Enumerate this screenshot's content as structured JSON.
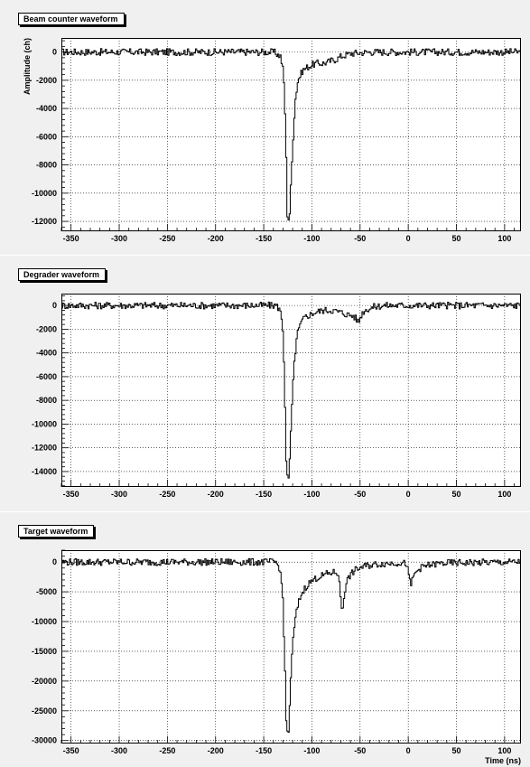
{
  "chart_data": [
    {
      "type": "line",
      "title": "Beam counter waveform",
      "xlabel": "",
      "ylabel": "Amplitude (ch)",
      "xlim": [
        -360,
        117
      ],
      "ylim": [
        -12700,
        1000
      ],
      "xticks": [
        -350,
        -300,
        -250,
        -200,
        -150,
        -100,
        -50,
        0,
        50,
        100
      ],
      "yticks": [
        0,
        -2000,
        -4000,
        -6000,
        -8000,
        -10000,
        -12000
      ],
      "grid": true,
      "series": [
        {
          "x": [
            -360,
            -140,
            -133,
            -130,
            -128,
            -126,
            -124,
            -122,
            -120,
            -118,
            -115,
            -110,
            -106,
            -100,
            -95,
            -90,
            -85,
            -80,
            -75,
            -70,
            -60,
            -40,
            0,
            50,
            100,
            117
          ],
          "y": [
            0,
            0,
            -300,
            -1500,
            -5000,
            -11500,
            -12000,
            -9000,
            -6000,
            -3500,
            -2000,
            -1300,
            -1100,
            -900,
            -800,
            -800,
            -750,
            -600,
            -500,
            -300,
            -100,
            0,
            0,
            0,
            0,
            0
          ]
        }
      ]
    },
    {
      "type": "line",
      "title": "Degrader waveform",
      "xlabel": "",
      "ylabel": "",
      "xlim": [
        -360,
        117
      ],
      "ylim": [
        -15300,
        1000
      ],
      "xticks": [
        -350,
        -300,
        -250,
        -200,
        -150,
        -100,
        -50,
        0,
        50,
        100
      ],
      "yticks": [
        0,
        -2000,
        -4000,
        -6000,
        -8000,
        -10000,
        -12000,
        -14000
      ],
      "grid": true,
      "series": [
        {
          "x": [
            -360,
            -138,
            -134,
            -131,
            -129,
            -127,
            -125,
            -123,
            -121,
            -119,
            -116,
            -112,
            -108,
            -103,
            -98,
            -93,
            -88,
            -80,
            -75,
            -70,
            -62,
            -57,
            -54,
            -52,
            -50,
            -47,
            -43,
            -35,
            -25,
            0,
            50,
            100,
            117
          ],
          "y": [
            0,
            0,
            -300,
            -1500,
            -6000,
            -14000,
            -15000,
            -12000,
            -8000,
            -5000,
            -2500,
            -1500,
            -1000,
            -800,
            -600,
            -500,
            -400,
            -400,
            -500,
            -600,
            -800,
            -900,
            -1200,
            -1400,
            -900,
            -500,
            -300,
            -100,
            0,
            0,
            0,
            0,
            0
          ]
        }
      ]
    },
    {
      "type": "line",
      "title": "Target waveform",
      "xlabel": "Time (ns)",
      "ylabel": "",
      "xlim": [
        -360,
        117
      ],
      "ylim": [
        -30500,
        2000
      ],
      "xticks": [
        -350,
        -300,
        -250,
        -200,
        -150,
        -100,
        -50,
        0,
        50,
        100
      ],
      "yticks": [
        0,
        -5000,
        -10000,
        -15000,
        -20000,
        -25000,
        -30000
      ],
      "grid": true,
      "series": [
        {
          "x": [
            -360,
            -138,
            -134,
            -131,
            -129,
            -127,
            -125,
            -123,
            -121,
            -119,
            -116,
            -113,
            -110,
            -107,
            -103,
            -99,
            -95,
            -90,
            -85,
            -80,
            -76,
            -73,
            -71,
            -69,
            -67,
            -65,
            -62,
            -58,
            -54,
            -50,
            -45,
            -40,
            -30,
            -20,
            -10,
            -2,
            0,
            2,
            4,
            7,
            10,
            15,
            22,
            35,
            60,
            117
          ],
          "y": [
            0,
            0,
            -1000,
            -5000,
            -15000,
            -28000,
            -29000,
            -22000,
            -15000,
            -11000,
            -8000,
            -6000,
            -5000,
            -4200,
            -3500,
            -3000,
            -2600,
            -2300,
            -2000,
            -1800,
            -1700,
            -2000,
            -5500,
            -8500,
            -5500,
            -3500,
            -2500,
            -1700,
            -1200,
            -900,
            -700,
            -500,
            -300,
            -200,
            -100,
            -300,
            -2500,
            -4000,
            -2800,
            -1800,
            -1200,
            -800,
            -500,
            -200,
            -100,
            0
          ]
        }
      ]
    }
  ]
}
